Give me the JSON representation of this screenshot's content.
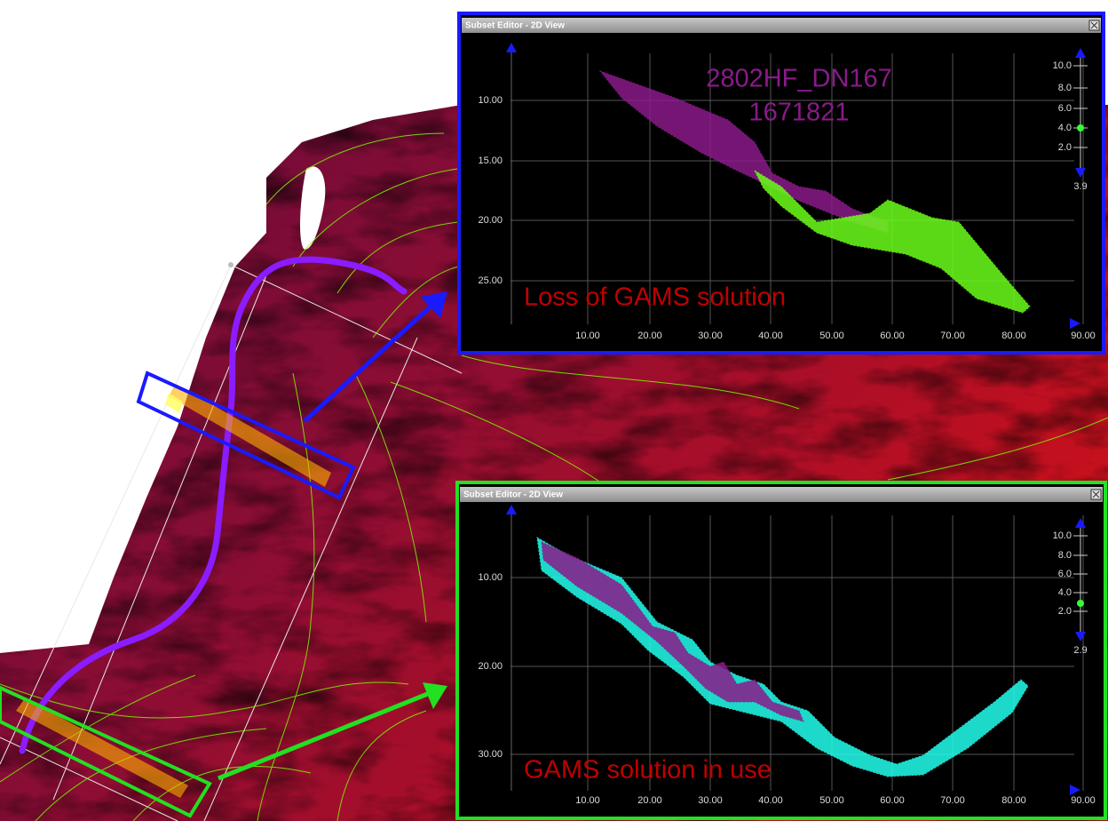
{
  "panels": [
    {
      "title": "Subset Editor - 2D View",
      "y_ticks": [
        "10.00",
        "15.00",
        "20.00",
        "25.00"
      ],
      "x_ticks": [
        "10.00",
        "20.00",
        "30.00",
        "40.00",
        "50.00",
        "60.00",
        "70.00",
        "80.00",
        "90.00"
      ],
      "slider_ticks": [
        "10.0",
        "8.0",
        "6.0",
        "4.0",
        "2.0"
      ],
      "slider_value": "3.9",
      "line_name": "2802HF_DN167",
      "line_number": "1671821",
      "caption": "Loss of GAMS solution"
    },
    {
      "title": "Subset Editor - 2D View",
      "y_ticks": [
        "10.00",
        "20.00",
        "30.00"
      ],
      "x_ticks": [
        "10.00",
        "20.00",
        "30.00",
        "40.00",
        "50.00",
        "60.00",
        "70.00",
        "80.00",
        "90.00"
      ],
      "slider_ticks": [
        "10.0",
        "8.0",
        "6.0",
        "4.0",
        "2.0"
      ],
      "slider_value": "2.9",
      "caption": "GAMS solution in use"
    }
  ]
}
